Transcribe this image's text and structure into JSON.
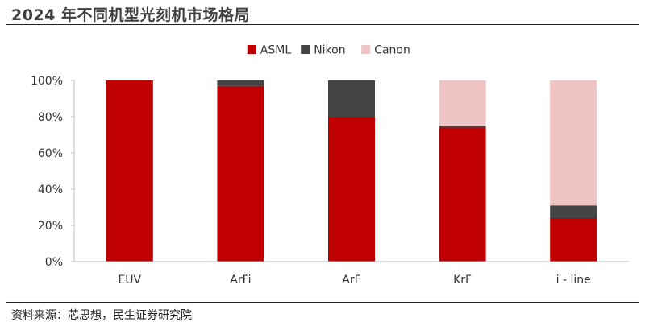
{
  "header": {
    "title": "2024 年不同机型光刻机市场格局"
  },
  "footer": {
    "source": "资料来源：芯思想，民生证券研究院"
  },
  "chart_data": {
    "type": "bar",
    "stacked": true,
    "percent_stacked": true,
    "categories": [
      "EUV",
      "ArFi",
      "ArF",
      "KrF",
      "i - line"
    ],
    "series": [
      {
        "name": "ASML",
        "values": [
          100,
          97,
          80,
          74,
          24
        ],
        "color": "#C00000"
      },
      {
        "name": "Nikon",
        "values": [
          0,
          3,
          20,
          1,
          7
        ],
        "color": "#454545"
      },
      {
        "name": "Canon",
        "values": [
          0,
          0,
          0,
          25,
          69
        ],
        "color": "#EFC4C4"
      }
    ],
    "yticks": [
      "0%",
      "20%",
      "40%",
      "60%",
      "80%",
      "100%"
    ],
    "ylim": [
      0,
      100
    ],
    "grid": false,
    "legend_position": "top-center"
  }
}
